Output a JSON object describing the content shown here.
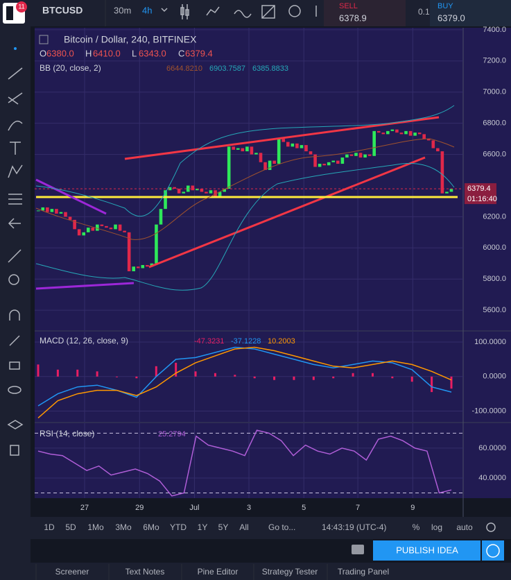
{
  "toolbar": {
    "symbol": "BTCUSD",
    "intervals": [
      "30m",
      "4h"
    ],
    "badge": "11",
    "sell": {
      "label": "SELL",
      "price": "6378.9"
    },
    "spread": "0.1",
    "buy": {
      "label": "BUY",
      "price": "6379.0"
    }
  },
  "chart_data": [
    {
      "type": "candlestick",
      "title": "Bitcoin / Dollar, 240, BITFINEX",
      "ohlc_legend": [
        {
          "label": "O",
          "value": "6380.0"
        },
        {
          "label": "H",
          "value": "6410.0"
        },
        {
          "label": "L",
          "value": "6343.0"
        },
        {
          "label": "C",
          "value": "6379.4"
        }
      ],
      "indicator": "BB (20, close, 2)",
      "indicator_values": [
        "6644.8210",
        "6903.7587",
        "6385.8833"
      ],
      "up_color": "#2ee85a",
      "down_color": "#e0284a",
      "closes": [
        6240,
        6260,
        6230,
        6250,
        6220,
        6230,
        6200,
        6180,
        6120,
        6080,
        6100,
        6130,
        6110,
        6150,
        6140,
        6130,
        6120,
        6150,
        6110,
        6100,
        5850,
        5880,
        5870,
        5890,
        5880,
        5900,
        6150,
        6250,
        6370,
        6390,
        6380,
        6350,
        6360,
        6400,
        6370,
        6380,
        6360,
        6350,
        6370,
        6330,
        6360,
        6380,
        6650,
        6630,
        6640,
        6620,
        6650,
        6600,
        6610,
        6550,
        6500,
        6560,
        6540,
        6700,
        6680,
        6650,
        6670,
        6640,
        6660,
        6620,
        6600,
        6520,
        6540,
        6530,
        6550,
        6560,
        6540,
        6580,
        6600,
        6590,
        6610,
        6580,
        6600,
        6590,
        6750,
        6740,
        6730,
        6750,
        6760,
        6740,
        6730,
        6750,
        6720,
        6740,
        6730,
        6700,
        6690,
        6640,
        6620,
        6350,
        6360,
        6379.4
      ],
      "last_price": {
        "value": 6379.4,
        "label": "6379.4"
      },
      "countdown": "01:16:40",
      "xlim": [
        -0.8,
        93.6
      ],
      "xticks": [
        {
          "value": 10.2,
          "label": "27"
        },
        {
          "value": 22.3,
          "label": "29"
        },
        {
          "value": 34.4,
          "label": "Jul"
        },
        {
          "value": 46.4,
          "label": "3"
        },
        {
          "value": 58.5,
          "label": "5"
        },
        {
          "value": 70.4,
          "label": "7"
        },
        {
          "value": 82.5,
          "label": "9"
        }
      ],
      "ylim": [
        5467,
        7413
      ],
      "yticks": [
        {
          "value": 7400,
          "label": "7400.0"
        },
        {
          "value": 7200,
          "label": "7200.0"
        },
        {
          "value": 7000,
          "label": "7000.0"
        },
        {
          "value": 6800,
          "label": "6800.0"
        },
        {
          "value": 6600,
          "label": "6600.0"
        },
        {
          "value": 6200,
          "label": "6200.0"
        },
        {
          "value": 6000,
          "label": "6000.0"
        },
        {
          "value": 5800,
          "label": "5800.0"
        },
        {
          "value": 5600,
          "label": "5600.0"
        }
      ],
      "grid": true
    },
    {
      "type": "line",
      "title": "MACD (12, 26, close, 9)",
      "legend_values": [
        "-47.3231",
        "-37.1228",
        "10.2003"
      ],
      "histogram_color": "#e91e63",
      "series": [
        {
          "color": "#2196f3",
          "values": [
            -85,
            -50,
            -30,
            -25,
            -40,
            -60,
            0,
            50,
            55,
            70,
            85,
            80,
            65,
            50,
            35,
            25,
            35,
            45,
            40,
            20,
            -30,
            -45
          ]
        },
        {
          "color": "#ff9800",
          "values": [
            -120,
            -70,
            -50,
            -40,
            -40,
            -55,
            -30,
            10,
            40,
            60,
            80,
            85,
            75,
            60,
            45,
            30,
            25,
            35,
            45,
            35,
            15,
            -10
          ]
        }
      ],
      "ylim": [
        -131.3,
        130.3
      ],
      "yticks": [
        {
          "value": 100,
          "label": "100.0000"
        },
        {
          "value": 0,
          "label": "0.0000"
        },
        {
          "value": -100,
          "label": "-100.0000"
        }
      ],
      "grid": true
    },
    {
      "type": "line",
      "title": "RSI (14, close)",
      "legend_values": [
        "25.2794"
      ],
      "series": [
        {
          "color": "#b05ed8",
          "values": [
            58,
            56,
            55,
            50,
            45,
            48,
            42,
            44,
            46,
            43,
            38,
            28,
            30,
            68,
            62,
            60,
            58,
            55,
            72,
            70,
            65,
            55,
            62,
            58,
            56,
            60,
            58,
            52,
            66,
            68,
            65,
            60,
            58,
            30,
            32
          ]
        }
      ],
      "bands": [
        70,
        30
      ],
      "ylim": [
        26.5,
        76.7
      ],
      "yticks": [
        {
          "value": 60,
          "label": "60.0000"
        },
        {
          "value": 40,
          "label": "40.0000"
        }
      ],
      "grid": true
    }
  ],
  "range_buttons": [
    "1D",
    "5D",
    "1Mo",
    "3Mo",
    "6Mo",
    "YTD",
    "1Y",
    "5Y",
    "All"
  ],
  "goto": "Go to...",
  "clock": "14:43:19 (UTC-4)",
  "scale_buttons": [
    "%",
    "log",
    "auto"
  ],
  "publish": "PUBLISH IDEA",
  "tabs": [
    "Screener",
    "Text Notes",
    "Pine Editor",
    "Strategy Tester",
    "Trading Panel"
  ]
}
